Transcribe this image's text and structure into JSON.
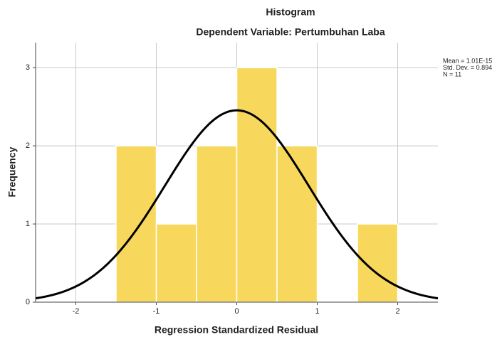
{
  "chart_data": {
    "type": "histogram",
    "title": "Histogram",
    "subtitle": "Dependent Variable: Pertumbuhan Laba",
    "xlabel": "Regression Standardized Residual",
    "ylabel": "Frequency",
    "bins": [
      -1.5,
      -1,
      -0.5,
      0,
      0.5,
      1,
      1.5,
      2
    ],
    "values": [
      2,
      1,
      2,
      3,
      2,
      0,
      1
    ],
    "color": "#f8d85c",
    "curve_color": "#000000",
    "stats": [
      {
        "value": 1.01e-15,
        "label": "Mean = 1.01E-15"
      },
      {
        "value": 0.894,
        "label": "Std. Dev. = 0.894"
      },
      {
        "value": 11,
        "label": "N = 11"
      }
    ],
    "xlim": [
      -2.5,
      2.5
    ],
    "xticks": [
      -2,
      -1,
      0,
      1,
      2
    ],
    "ylim": [
      0,
      3.32
    ],
    "yticks": [
      0,
      1,
      2,
      3
    ],
    "grid": true
  }
}
